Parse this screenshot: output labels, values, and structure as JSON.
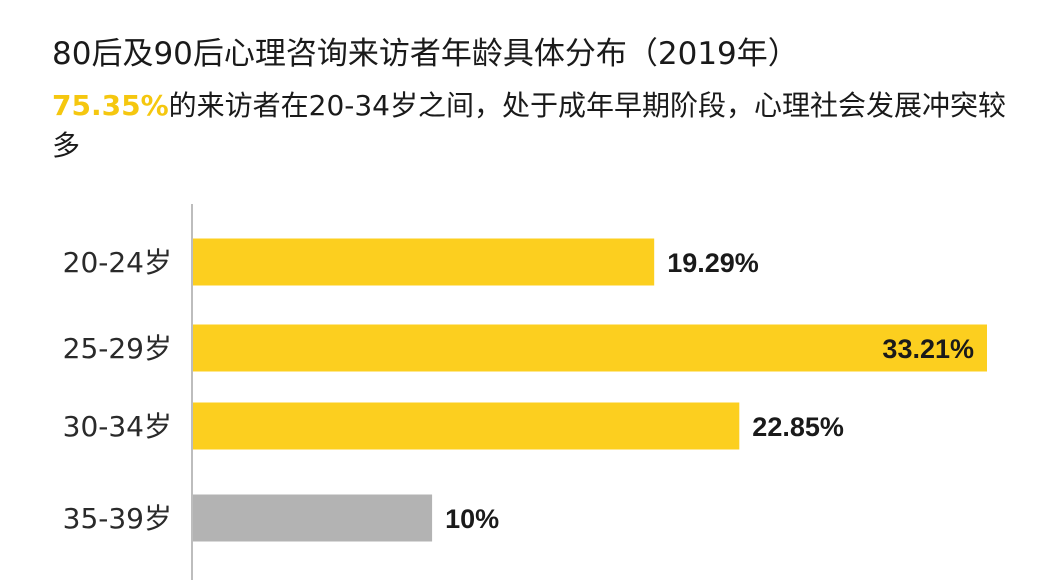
{
  "header": {
    "title": "80后及90后心理咨询来访者年龄具体分布（2019年）",
    "subtitle_highlight": "75.35%",
    "subtitle_rest": "的来访者在20-34岁之间，处于成年早期阶段，心理社会发展冲突较多"
  },
  "colors": {
    "primary_bar": "#fccf1f",
    "secondary_bar": "#b3b3b3",
    "highlight_text": "#f5c70f",
    "axis": "#bdbdbd"
  },
  "chart_data": {
    "type": "bar",
    "orientation": "horizontal",
    "categories": [
      "20-24岁",
      "25-29岁",
      "30-34岁",
      "35-39岁"
    ],
    "values": [
      19.29,
      33.21,
      22.85,
      10
    ],
    "value_labels": [
      "19.29%",
      "33.21%",
      "22.85%",
      "10%"
    ],
    "bar_colors": [
      "#fccf1f",
      "#fccf1f",
      "#fccf1f",
      "#b3b3b3"
    ],
    "title": "80后及90后心理咨询来访者年龄具体分布（2019年）",
    "xlabel": "",
    "ylabel": "",
    "xlim": [
      0,
      33.21
    ],
    "grid": false,
    "legend": "none"
  }
}
